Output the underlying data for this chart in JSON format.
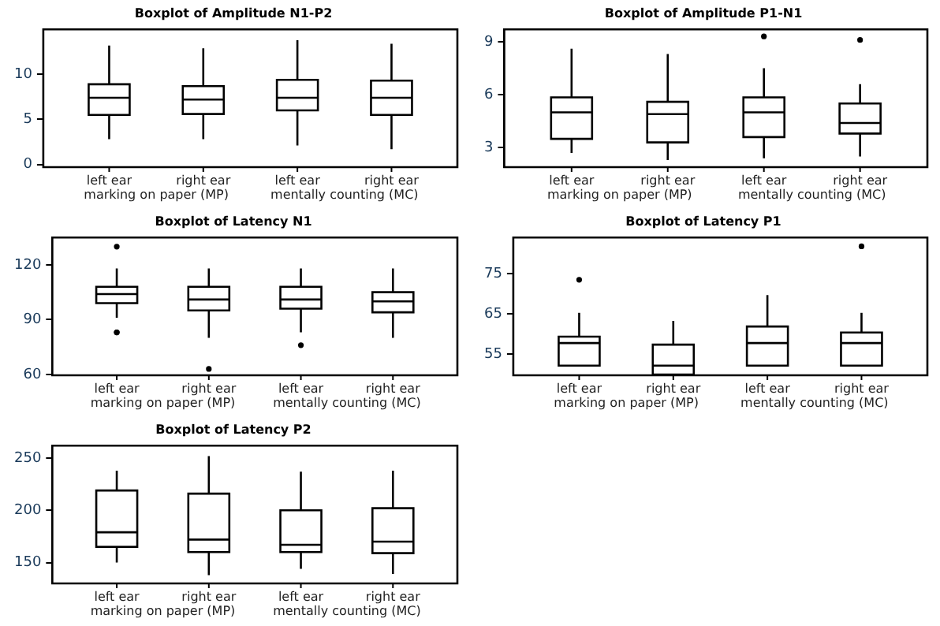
{
  "chart_data": [
    {
      "type": "box",
      "title": "Boxplot of Amplitude N1-P2",
      "categories": [
        "left ear",
        "right ear",
        "left ear",
        "right ear"
      ],
      "annotations": [
        "marking on paper (MP)",
        "mentally counting (MC)"
      ],
      "ylim": [
        -0.3,
        15
      ],
      "yticks": [
        0,
        5,
        10
      ],
      "grid": false,
      "legend": false,
      "boxes": [
        {
          "low": 2.8,
          "q1": 5.5,
          "median": 7.4,
          "q3": 8.9,
          "high": 13.2
        },
        {
          "low": 2.8,
          "q1": 5.6,
          "median": 7.2,
          "q3": 8.7,
          "high": 12.9
        },
        {
          "low": 2.1,
          "q1": 6.0,
          "median": 7.4,
          "q3": 9.4,
          "high": 13.8
        },
        {
          "low": 1.7,
          "q1": 5.5,
          "median": 7.4,
          "q3": 9.3,
          "high": 13.4
        }
      ]
    },
    {
      "type": "box",
      "title": "Boxplot of Amplitude P1-N1",
      "categories": [
        "left ear",
        "right ear",
        "left ear",
        "right ear"
      ],
      "annotations": [
        "marking on paper (MP)",
        "mentally counting (MC)"
      ],
      "ylim": [
        1.9,
        9.7
      ],
      "yticks": [
        3,
        6,
        9
      ],
      "grid": false,
      "legend": false,
      "boxes": [
        {
          "low": 2.7,
          "q1": 3.5,
          "median": 5.0,
          "q3": 5.85,
          "high": 8.6
        },
        {
          "low": 2.3,
          "q1": 3.3,
          "median": 4.9,
          "q3": 5.6,
          "high": 8.3
        },
        {
          "low": 2.4,
          "q1": 3.6,
          "median": 5.0,
          "q3": 5.85,
          "high": 7.5,
          "outliers": [
            9.3
          ]
        },
        {
          "low": 2.5,
          "q1": 3.8,
          "median": 4.4,
          "q3": 5.5,
          "high": 6.6,
          "outliers": [
            9.1
          ]
        }
      ]
    },
    {
      "type": "box",
      "title": "Boxplot of Latency N1",
      "categories": [
        "left ear",
        "right ear",
        "left ear",
        "right ear"
      ],
      "annotations": [
        "marking on paper (MP)",
        "mentally counting (MC)"
      ],
      "ylim": [
        59.5,
        135
      ],
      "yticks": [
        60,
        90,
        120
      ],
      "grid": false,
      "legend": false,
      "boxes": [
        {
          "low": 91,
          "q1": 99,
          "median": 104,
          "q3": 108,
          "high": 118,
          "outliers": [
            130,
            83,
            83
          ]
        },
        {
          "low": 80,
          "q1": 95,
          "median": 101,
          "q3": 108,
          "high": 118,
          "outliers": [
            63
          ]
        },
        {
          "low": 83,
          "q1": 96,
          "median": 101,
          "q3": 108,
          "high": 118,
          "outliers": [
            76
          ]
        },
        {
          "low": 80,
          "q1": 94,
          "median": 100,
          "q3": 105,
          "high": 118
        }
      ]
    },
    {
      "type": "box",
      "title": "Boxplot of Latency P1",
      "categories": [
        "left ear",
        "right ear",
        "left ear",
        "right ear"
      ],
      "annotations": [
        "marking on paper (MP)",
        "mentally counting (MC)"
      ],
      "ylim": [
        49.8,
        84
      ],
      "yticks": [
        55,
        65,
        75
      ],
      "grid": false,
      "legend": false,
      "boxes": [
        {
          "low": 52.2,
          "q1": 52.2,
          "median": 57.8,
          "q3": 59.4,
          "high": 65.3,
          "outliers": [
            73.5
          ]
        },
        {
          "low": 50,
          "q1": 50,
          "median": 52.2,
          "q3": 57.4,
          "high": 63.3
        },
        {
          "low": 52.2,
          "q1": 52.2,
          "median": 57.8,
          "q3": 61.9,
          "high": 69.7
        },
        {
          "low": 52.2,
          "q1": 52.2,
          "median": 57.8,
          "q3": 60.4,
          "high": 65.3,
          "outliers": [
            81.8
          ]
        }
      ]
    },
    {
      "type": "box",
      "title": "Boxplot of Latency P2",
      "categories": [
        "left ear",
        "right ear",
        "left ear",
        "right ear"
      ],
      "annotations": [
        "marking on paper (MP)",
        "mentally counting (MC)"
      ],
      "ylim": [
        130,
        262
      ],
      "yticks": [
        150,
        200,
        250
      ],
      "grid": false,
      "legend": false,
      "boxes": [
        {
          "low": 150,
          "q1": 165,
          "median": 179,
          "q3": 219,
          "high": 238
        },
        {
          "low": 138,
          "q1": 160,
          "median": 172,
          "q3": 216,
          "high": 252
        },
        {
          "low": 144,
          "q1": 160,
          "median": 167,
          "q3": 200,
          "high": 237
        },
        {
          "low": 139,
          "q1": 159,
          "median": 170,
          "q3": 202,
          "high": 238
        }
      ]
    }
  ]
}
